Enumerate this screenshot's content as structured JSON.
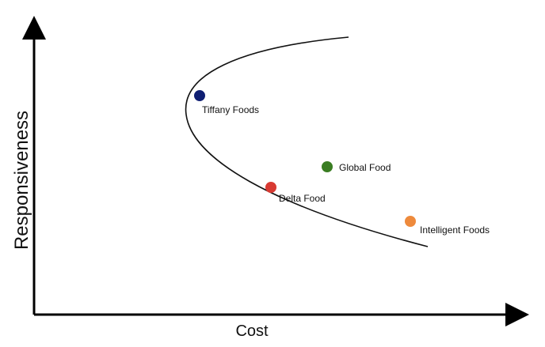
{
  "diagram": {
    "axes": {
      "x_label": "Cost",
      "y_label": "Responsiveness"
    },
    "points": [
      {
        "name": "Tiffany Foods",
        "color": "#0f1f73"
      },
      {
        "name": "Global Food",
        "color": "#3a7d22"
      },
      {
        "name": "Delta Food",
        "color": "#d83a32"
      },
      {
        "name": "Intelligent Foods",
        "color": "#ee8a3c"
      }
    ]
  }
}
